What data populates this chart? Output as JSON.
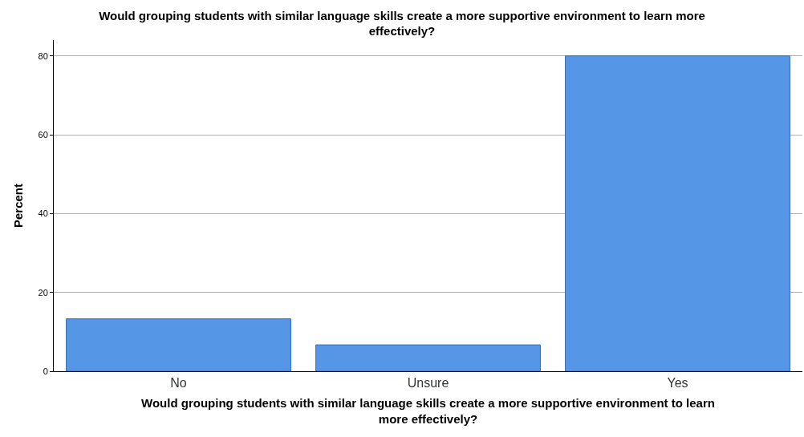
{
  "chart_data": {
    "type": "bar",
    "title": "Would grouping students with similar language skills create a more supportive environment to learn more effectively?",
    "xlabel": "Would grouping students with similar language skills create a more supportive environment to learn more effectively?",
    "ylabel": "Percent",
    "categories": [
      "No",
      "Unsure",
      "Yes"
    ],
    "values": [
      13.3,
      6.7,
      80.0
    ],
    "color": "#5596e6",
    "ylim": [
      0,
      84
    ],
    "yticks": [
      0,
      20,
      40,
      60,
      80
    ],
    "grid": "y",
    "legend": false
  }
}
